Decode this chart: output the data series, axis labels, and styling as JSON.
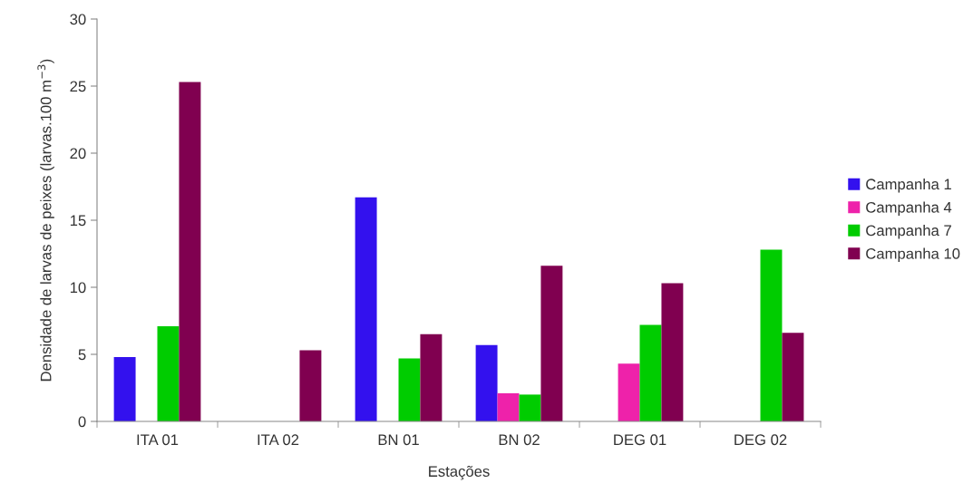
{
  "chart_data": {
    "type": "bar",
    "xlabel": "Estações",
    "ylabel": "Densidade de larvas de peixes (larvas.100 m$^{−3}$)",
    "categories": [
      "ITA 01",
      "ITA 02",
      "BN 01",
      "BN 02",
      "DEG 01",
      "DEG 02"
    ],
    "series": [
      {
        "name": "Campanha 1",
        "color": "#3311ee",
        "values": [
          4.8,
          0,
          16.7,
          5.7,
          0,
          0
        ]
      },
      {
        "name": "Campanha 4",
        "color": "#ee22aa",
        "values": [
          0,
          0,
          0,
          2.1,
          4.3,
          0
        ]
      },
      {
        "name": "Campanha 7",
        "color": "#00cc00",
        "values": [
          7.1,
          0,
          4.7,
          2.0,
          7.2,
          12.8
        ]
      },
      {
        "name": "Campanha 10",
        "color": "#800050",
        "values": [
          25.3,
          5.3,
          6.5,
          11.6,
          10.3,
          6.6
        ]
      }
    ],
    "ylim": [
      0,
      30
    ],
    "yticks": [
      0,
      5,
      10,
      15,
      20,
      25,
      30
    ],
    "grid": false,
    "legend": "right"
  }
}
